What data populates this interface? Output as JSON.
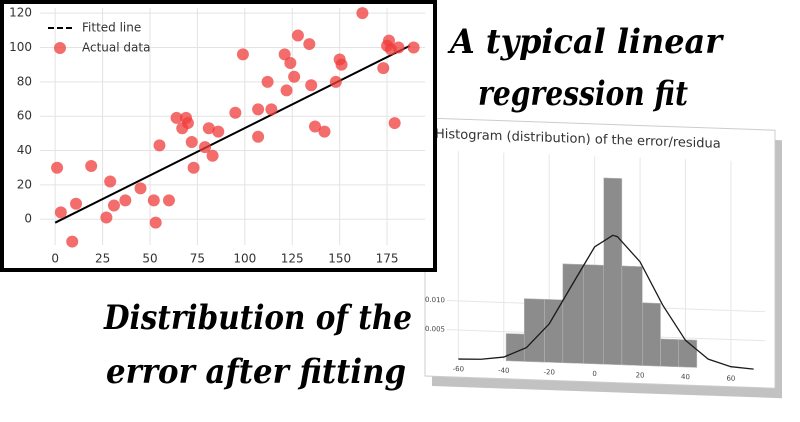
{
  "captions": [
    [
      "A typical linear",
      "regression fit"
    ],
    [
      "Distribution of the",
      "error after fitting"
    ]
  ],
  "chart_data": [
    {
      "type": "scatter",
      "legend": "upper left",
      "grid": true,
      "xlim": [
        -8,
        195
      ],
      "xticks": [
        0,
        25,
        50,
        75,
        100,
        125,
        150,
        175
      ],
      "ylim": [
        -15,
        123
      ],
      "yticks": [
        0,
        20,
        40,
        60,
        80,
        100,
        120
      ],
      "series": [
        {
          "name": "Fitted line",
          "color": "#000000",
          "style": "line",
          "x": [
            0,
            187
          ],
          "values": [
            -2,
            101
          ]
        },
        {
          "name": "Actual data",
          "color": "#f03c3c",
          "style": "markers",
          "x": [
            1,
            3,
            9,
            11,
            19,
            27,
            29,
            31,
            37,
            45,
            52,
            53,
            55,
            60,
            64,
            67,
            69,
            70,
            72,
            73,
            79,
            81,
            83,
            86,
            95,
            99,
            107,
            107,
            112,
            114,
            121,
            122,
            124,
            126,
            128,
            134,
            135,
            137,
            142,
            148,
            150,
            151,
            162,
            173,
            175,
            176,
            177,
            179,
            181,
            189
          ],
          "values": [
            30,
            4,
            -13,
            9,
            31,
            1,
            22,
            8,
            11,
            18,
            11,
            -2,
            43,
            11,
            59,
            53,
            59,
            56,
            45,
            30,
            42,
            53,
            37,
            51,
            62,
            96,
            64,
            48,
            80,
            64,
            96,
            75,
            91,
            83,
            107,
            102,
            78,
            54,
            51,
            80,
            93,
            90,
            120,
            88,
            101,
            104,
            99,
            56,
            100,
            100
          ]
        }
      ]
    },
    {
      "type": "histogram",
      "title": "Histogram (distribution) of the error/residua",
      "grid": true,
      "color": "#8c8c8c",
      "bins": [
        -39,
        -31,
        -22,
        -14,
        -5,
        4,
        12,
        21,
        29,
        37,
        45
      ],
      "values": [
        0.0047,
        0.0108,
        0.0108,
        0.017,
        0.017,
        0.032,
        0.017,
        0.0108,
        0.0047,
        0.0047
      ],
      "curve": {
        "color": "#1a1a1a",
        "x": [
          -60,
          -50,
          -40,
          -30,
          -20,
          -10,
          0,
          8,
          10,
          20,
          30,
          40,
          50,
          60,
          70
        ],
        "values": [
          2e-05,
          0.00012,
          0.00063,
          0.0024,
          0.0066,
          0.0134,
          0.0201,
          0.0222,
          0.022,
          0.0178,
          0.0105,
          0.0046,
          0.0015,
          0.00034,
          6e-05
        ]
      },
      "xlim": [
        -65,
        75
      ],
      "xticks": [
        -60,
        -40,
        -20,
        0,
        20,
        40,
        60
      ],
      "ylim": [
        0,
        0.034
      ],
      "yticks": [
        0.005,
        {
          "value": 0.01,
          "label": "0.010"
        }
      ]
    }
  ]
}
